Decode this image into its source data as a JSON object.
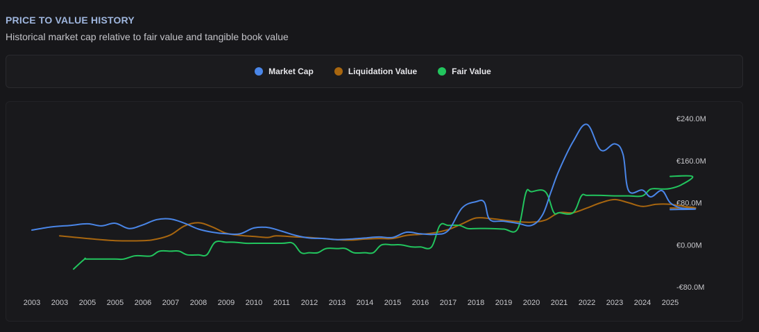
{
  "header": {
    "title": "PRICE TO VALUE HISTORY",
    "subtitle": "Historical market cap relative to fair value and tangible book value"
  },
  "legend": [
    {
      "label": "Market Cap",
      "color": "#4a86e8",
      "series": "market_cap"
    },
    {
      "label": "Liquidation Value",
      "color": "#a8660f",
      "series": "liquidation_value"
    },
    {
      "label": "Fair Value",
      "color": "#22c55e",
      "series": "fair_value"
    }
  ],
  "chart_data": {
    "type": "line",
    "title": "PRICE TO VALUE HISTORY",
    "xlabel": "",
    "ylabel": "",
    "x_tick_labels": [
      "2003",
      "2003",
      "2005",
      "2005",
      "2006",
      "2007",
      "2008",
      "2009",
      "2010",
      "2011",
      "2012",
      "2013",
      "2014",
      "2015",
      "2016",
      "2017",
      "2018",
      "2019",
      "2020",
      "2021",
      "2022",
      "2023",
      "2024",
      "2025"
    ],
    "y_ticks": [
      {
        "value": 240,
        "label": "€240.0M"
      },
      {
        "value": 160,
        "label": "€160.0M"
      },
      {
        "value": 80,
        "label": "€80.0M"
      },
      {
        "value": 0,
        "label": "€0.00M"
      },
      {
        "value": -80,
        "label": "-€80.0M"
      }
    ],
    "ylim": [
      -80,
      240
    ],
    "xlim": [
      2003.0,
      2026.0
    ],
    "grid": false,
    "series": [
      {
        "name": "Market Cap",
        "key": "market_cap",
        "color": "#4a86e8",
        "points": [
          [
            2003.0,
            28
          ],
          [
            2003.7,
            34
          ],
          [
            2004.4,
            37
          ],
          [
            2005.0,
            40
          ],
          [
            2005.5,
            36
          ],
          [
            2006.0,
            41
          ],
          [
            2006.5,
            31
          ],
          [
            2007.0,
            38
          ],
          [
            2007.5,
            48
          ],
          [
            2008.0,
            49
          ],
          [
            2008.5,
            41
          ],
          [
            2009.0,
            30
          ],
          [
            2009.5,
            24
          ],
          [
            2010.0,
            21
          ],
          [
            2010.5,
            21
          ],
          [
            2011.0,
            32
          ],
          [
            2011.5,
            33
          ],
          [
            2012.0,
            26
          ],
          [
            2012.5,
            18
          ],
          [
            2013.0,
            13
          ],
          [
            2013.5,
            12
          ],
          [
            2014.0,
            10
          ],
          [
            2014.5,
            11
          ],
          [
            2015.0,
            13
          ],
          [
            2015.5,
            15
          ],
          [
            2016.0,
            14
          ],
          [
            2016.5,
            24
          ],
          [
            2017.0,
            21
          ],
          [
            2017.5,
            20
          ],
          [
            2018.0,
            27
          ],
          [
            2018.5,
            70
          ],
          [
            2019.0,
            82
          ],
          [
            2019.3,
            81
          ],
          [
            2019.5,
            48
          ],
          [
            2020.0,
            45
          ],
          [
            2020.5,
            41
          ],
          [
            2021.0,
            37
          ],
          [
            2021.4,
            57
          ],
          [
            2021.7,
            100
          ],
          [
            2022.0,
            142
          ],
          [
            2022.5,
            196
          ],
          [
            2023.0,
            229
          ],
          [
            2023.5,
            180
          ],
          [
            2024.0,
            192
          ],
          [
            2024.3,
            172
          ],
          [
            2024.5,
            103
          ],
          [
            2025.0,
            104
          ],
          [
            2025.3,
            91
          ],
          [
            2025.7,
            103
          ],
          [
            2026.0,
            80
          ],
          [
            2026.4,
            70
          ],
          [
            2026.9,
            68
          ],
          [
            2026.0,
            67
          ]
        ]
      },
      {
        "name": "Liquidation Value",
        "key": "liquidation_value",
        "color": "#a8660f",
        "points": [
          [
            2004.0,
            17
          ],
          [
            2005.0,
            12
          ],
          [
            2006.0,
            8
          ],
          [
            2007.0,
            8
          ],
          [
            2007.5,
            11
          ],
          [
            2008.0,
            19
          ],
          [
            2008.5,
            36
          ],
          [
            2009.0,
            42
          ],
          [
            2009.5,
            34
          ],
          [
            2010.0,
            22
          ],
          [
            2010.5,
            18
          ],
          [
            2011.0,
            16
          ],
          [
            2011.5,
            14
          ],
          [
            2011.8,
            17
          ],
          [
            2012.5,
            15
          ],
          [
            2013.0,
            14
          ],
          [
            2013.5,
            12
          ],
          [
            2014.0,
            10
          ],
          [
            2014.5,
            9
          ],
          [
            2015.0,
            11
          ],
          [
            2015.5,
            12
          ],
          [
            2016.0,
            12
          ],
          [
            2016.5,
            18
          ],
          [
            2017.0,
            20
          ],
          [
            2017.5,
            23
          ],
          [
            2018.0,
            29
          ],
          [
            2018.5,
            40
          ],
          [
            2019.0,
            51
          ],
          [
            2019.5,
            50
          ],
          [
            2020.0,
            47
          ],
          [
            2020.5,
            44
          ],
          [
            2021.0,
            43
          ],
          [
            2021.5,
            47
          ],
          [
            2022.0,
            61
          ],
          [
            2022.5,
            61
          ],
          [
            2023.0,
            70
          ],
          [
            2023.5,
            80
          ],
          [
            2024.0,
            86
          ],
          [
            2024.5,
            80
          ],
          [
            2025.0,
            73
          ],
          [
            2025.5,
            77
          ],
          [
            2026.0,
            77
          ],
          [
            2026.5,
            73
          ],
          [
            2026.9,
            70
          ],
          [
            2026.0,
            70
          ]
        ]
      },
      {
        "name": "Fair Value",
        "key": "fair_value",
        "color": "#22c55e",
        "points": [
          [
            2004.5,
            -46
          ],
          [
            2004.9,
            -27
          ],
          [
            2005.0,
            -27
          ],
          [
            2006.0,
            -27
          ],
          [
            2006.3,
            -27
          ],
          [
            2006.7,
            -21
          ],
          [
            2007.0,
            -21
          ],
          [
            2007.3,
            -21
          ],
          [
            2007.6,
            -12
          ],
          [
            2008.0,
            -12
          ],
          [
            2008.3,
            -12
          ],
          [
            2008.6,
            -19
          ],
          [
            2009.0,
            -19
          ],
          [
            2009.3,
            -19
          ],
          [
            2009.6,
            5
          ],
          [
            2010.0,
            5
          ],
          [
            2010.3,
            5
          ],
          [
            2010.7,
            3
          ],
          [
            2011.0,
            3
          ],
          [
            2012.0,
            3
          ],
          [
            2012.4,
            3
          ],
          [
            2012.7,
            -15
          ],
          [
            2013.0,
            -15
          ],
          [
            2013.3,
            -15
          ],
          [
            2013.6,
            -7
          ],
          [
            2014.0,
            -7
          ],
          [
            2014.3,
            -7
          ],
          [
            2014.6,
            -15
          ],
          [
            2015.0,
            -15
          ],
          [
            2015.3,
            -15
          ],
          [
            2015.6,
            0
          ],
          [
            2016.0,
            0
          ],
          [
            2016.3,
            0
          ],
          [
            2016.7,
            -4
          ],
          [
            2017.0,
            -4
          ],
          [
            2017.4,
            -4
          ],
          [
            2017.7,
            37
          ],
          [
            2018.0,
            37
          ],
          [
            2018.4,
            37
          ],
          [
            2018.7,
            31
          ],
          [
            2019.0,
            31
          ],
          [
            2019.5,
            31
          ],
          [
            2020.0,
            30
          ],
          [
            2020.5,
            30
          ],
          [
            2020.8,
            99
          ],
          [
            2021.0,
            101
          ],
          [
            2021.5,
            101
          ],
          [
            2021.8,
            62
          ],
          [
            2022.0,
            61
          ],
          [
            2022.5,
            61
          ],
          [
            2022.8,
            93
          ],
          [
            2023.0,
            94
          ],
          [
            2023.5,
            94
          ],
          [
            2024.0,
            93
          ],
          [
            2024.5,
            93
          ],
          [
            2025.0,
            93
          ],
          [
            2025.3,
            106
          ],
          [
            2025.7,
            106
          ],
          [
            2026.0,
            107
          ],
          [
            2026.4,
            114
          ],
          [
            2026.8,
            130
          ],
          [
            2026.0,
            130
          ]
        ]
      }
    ]
  }
}
